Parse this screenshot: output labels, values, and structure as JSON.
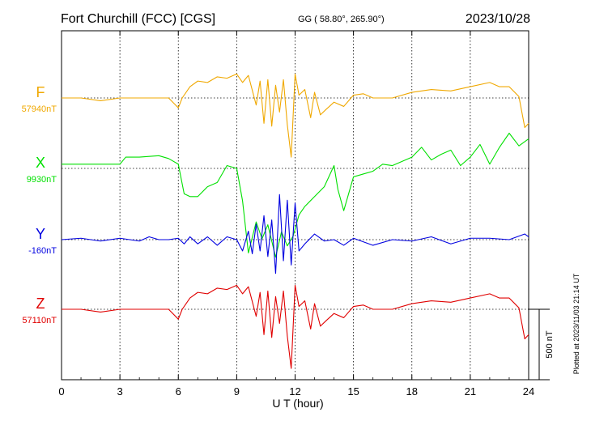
{
  "header": {
    "station": "Fort Churchill (FCC)  [CGS]",
    "coords": "GG ( 58.80°, 265.90°)",
    "date": "2023/10/28"
  },
  "plotted_note": "Plotted at 2023/11/03 21:14 UT",
  "chart_data": {
    "type": "line",
    "xlabel": "U T (hour)",
    "xlim": [
      0,
      24
    ],
    "x_ticks": [
      "0",
      "3",
      "6",
      "9",
      "12",
      "15",
      "18",
      "21",
      "24"
    ],
    "scale_bar": {
      "label": "500 nT",
      "nT": 500
    },
    "grid": true,
    "series": [
      {
        "name": "F",
        "baseline_label": "57940nT",
        "color": "#f0a800",
        "x": [
          0,
          1,
          2,
          3,
          4,
          5,
          5.5,
          6,
          6.2,
          6.6,
          7,
          7.5,
          8,
          8.5,
          9,
          9.3,
          9.6,
          10,
          10.2,
          10.4,
          10.6,
          10.8,
          11,
          11.2,
          11.4,
          11.6,
          11.8,
          12,
          12.2,
          12.5,
          12.8,
          13,
          13.3,
          13.6,
          14,
          14.5,
          15,
          15.5,
          16,
          17,
          18,
          19,
          20,
          21,
          22,
          22.5,
          23,
          23.5,
          23.8,
          24
        ],
        "y": [
          0,
          0,
          -20,
          0,
          0,
          0,
          0,
          -70,
          0,
          80,
          120,
          110,
          150,
          140,
          170,
          110,
          160,
          -50,
          120,
          -180,
          130,
          -200,
          90,
          -100,
          130,
          -190,
          -420,
          170,
          20,
          60,
          -140,
          40,
          -120,
          -80,
          -30,
          -60,
          20,
          30,
          0,
          0,
          40,
          60,
          50,
          80,
          110,
          80,
          80,
          10,
          -210,
          -180
        ]
      },
      {
        "name": "X",
        "baseline_label": "9930nT",
        "color": "#00e000",
        "x": [
          0,
          1,
          2,
          3,
          3.3,
          4,
          5,
          5.5,
          6,
          6.3,
          6.6,
          7,
          7.5,
          8,
          8.5,
          9,
          9.3,
          9.6,
          10,
          10.3,
          10.6,
          11,
          11.3,
          11.6,
          11.9,
          12.2,
          12.5,
          13,
          13.5,
          14,
          14.2,
          14.5,
          15,
          15.5,
          16,
          16.5,
          17,
          18,
          18.5,
          19,
          19.5,
          20,
          20.5,
          21,
          21.5,
          22,
          22.5,
          23,
          23.5,
          24
        ],
        "y": [
          30,
          30,
          30,
          30,
          80,
          80,
          90,
          70,
          30,
          -180,
          -200,
          -200,
          -130,
          -100,
          20,
          0,
          -230,
          -600,
          -380,
          -500,
          -400,
          -630,
          -450,
          -550,
          -480,
          -330,
          -270,
          -200,
          -130,
          20,
          -150,
          -300,
          -60,
          -40,
          -20,
          30,
          20,
          80,
          150,
          60,
          100,
          130,
          20,
          80,
          170,
          30,
          150,
          250,
          160,
          210
        ]
      },
      {
        "name": "Y",
        "baseline_label": "-160nT",
        "color": "#0000e0",
        "x": [
          0,
          1,
          2,
          3,
          4,
          4.5,
          5,
          5.5,
          6,
          6.3,
          6.6,
          7,
          7.5,
          8,
          8.5,
          9,
          9.3,
          9.6,
          9.8,
          10,
          10.2,
          10.4,
          10.6,
          10.8,
          11,
          11.2,
          11.4,
          11.6,
          11.8,
          12,
          12.2,
          12.5,
          13,
          13.5,
          14,
          14.5,
          15,
          16,
          17,
          18,
          19,
          20,
          21,
          22,
          23,
          23.8,
          24
        ],
        "y": [
          0,
          10,
          -10,
          10,
          -10,
          20,
          0,
          0,
          10,
          -30,
          20,
          -30,
          20,
          -40,
          20,
          0,
          -80,
          60,
          -100,
          110,
          -80,
          170,
          -120,
          140,
          -240,
          320,
          -150,
          280,
          -180,
          260,
          -80,
          -30,
          40,
          -10,
          0,
          -40,
          10,
          -40,
          0,
          -10,
          20,
          -30,
          10,
          10,
          0,
          40,
          20
        ]
      },
      {
        "name": "Z",
        "baseline_label": "57110nT",
        "color": "#e00000",
        "x": [
          0,
          1,
          2,
          3,
          4,
          5,
          5.5,
          6,
          6.2,
          6.6,
          7,
          7.5,
          8,
          8.5,
          9,
          9.3,
          9.6,
          10,
          10.2,
          10.4,
          10.6,
          10.8,
          11,
          11.2,
          11.4,
          11.6,
          11.8,
          12,
          12.2,
          12.5,
          12.8,
          13,
          13.3,
          13.6,
          14,
          14.5,
          15,
          15.5,
          16,
          17,
          18,
          19,
          20,
          21,
          22,
          22.5,
          23,
          23.5,
          23.8,
          24
        ],
        "y": [
          0,
          0,
          -20,
          0,
          0,
          0,
          0,
          -70,
          0,
          80,
          120,
          110,
          150,
          140,
          170,
          110,
          160,
          -50,
          120,
          -180,
          130,
          -200,
          90,
          -100,
          130,
          -190,
          -420,
          170,
          20,
          60,
          -140,
          40,
          -120,
          -80,
          -30,
          -60,
          20,
          30,
          0,
          0,
          40,
          60,
          50,
          80,
          110,
          80,
          80,
          10,
          -210,
          -180
        ]
      }
    ]
  }
}
